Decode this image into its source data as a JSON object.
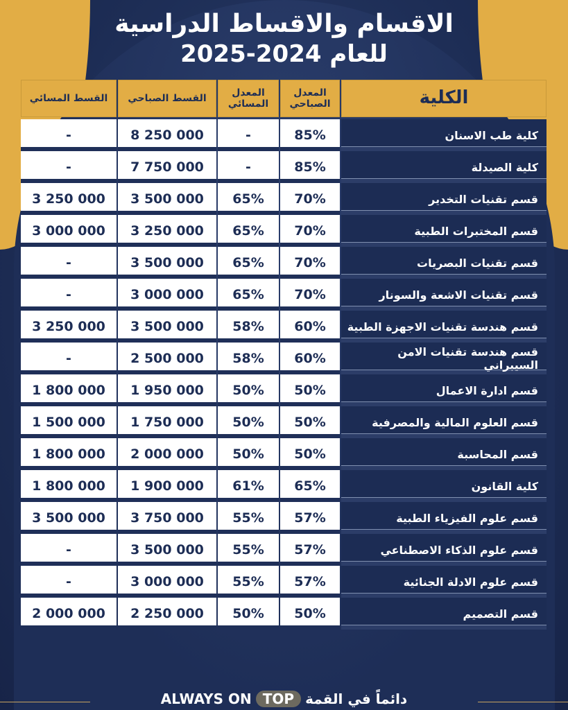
{
  "header": {
    "title_line1": "الاقسام والاقساط الدراسية",
    "title_line2": "للعام 2024-2025"
  },
  "colors": {
    "gold": "#e2ad45",
    "navy": "#1d2d55"
  },
  "table": {
    "columns": {
      "name": "الكلية",
      "morning_rate": "المعدل الصباحي",
      "evening_rate": "المعدل المسائي",
      "morning_fee": "القسط الصباحي",
      "evening_fee": "القسط المسائي"
    },
    "rows": [
      {
        "name": "كلية طب الاسنان",
        "morning_rate": "85%",
        "evening_rate": "-",
        "morning_fee": "8 250 000",
        "evening_fee": "-"
      },
      {
        "name": "كلية الصيدلة",
        "morning_rate": "85%",
        "evening_rate": "-",
        "morning_fee": "7 750 000",
        "evening_fee": "-"
      },
      {
        "name": "قسم تقنيات التخدير",
        "morning_rate": "70%",
        "evening_rate": "65%",
        "morning_fee": "3 500 000",
        "evening_fee": "3 250 000"
      },
      {
        "name": "قسم المختبرات الطبية",
        "morning_rate": "70%",
        "evening_rate": "65%",
        "morning_fee": "3 250 000",
        "evening_fee": "3 000 000"
      },
      {
        "name": "قسم تقنيات البصريات",
        "morning_rate": "70%",
        "evening_rate": "65%",
        "morning_fee": "3 500 000",
        "evening_fee": "-"
      },
      {
        "name": "قسم تقنيات الاشعة والسونار",
        "morning_rate": "70%",
        "evening_rate": "65%",
        "morning_fee": "3 000 000",
        "evening_fee": "-"
      },
      {
        "name": "قسم هندسة تقنيات الاجهزة الطبية",
        "morning_rate": "60%",
        "evening_rate": "58%",
        "morning_fee": "3 500 000",
        "evening_fee": "3 250 000"
      },
      {
        "name": "قسم هندسة تقنيات الامن السيبراني",
        "morning_rate": "60%",
        "evening_rate": "58%",
        "morning_fee": "2 500 000",
        "evening_fee": "-"
      },
      {
        "name": "قسم ادارة الاعمال",
        "morning_rate": "50%",
        "evening_rate": "50%",
        "morning_fee": "1 950 000",
        "evening_fee": "1 800 000"
      },
      {
        "name": "قسم العلوم المالية والمصرفية",
        "morning_rate": "50%",
        "evening_rate": "50%",
        "morning_fee": "1 750 000",
        "evening_fee": "1 500 000"
      },
      {
        "name": "قسم المحاسبة",
        "morning_rate": "50%",
        "evening_rate": "50%",
        "morning_fee": "2 000 000",
        "evening_fee": "1 800 000"
      },
      {
        "name": "كلية القانون",
        "morning_rate": "65%",
        "evening_rate": "61%",
        "morning_fee": "1 900 000",
        "evening_fee": "1 800 000"
      },
      {
        "name": "قسم علوم الفيزياء الطبية",
        "morning_rate": "57%",
        "evening_rate": "55%",
        "morning_fee": "3 750 000",
        "evening_fee": "3 500 000"
      },
      {
        "name": "قسم علوم الذكاء الاصطناعي",
        "morning_rate": "57%",
        "evening_rate": "55%",
        "morning_fee": "3 500 000",
        "evening_fee": "-"
      },
      {
        "name": "قسم علوم الادلة الجنائية",
        "morning_rate": "57%",
        "evening_rate": "55%",
        "morning_fee": "3 000 000",
        "evening_fee": "-"
      },
      {
        "name": "قسم التصميم",
        "morning_rate": "50%",
        "evening_rate": "50%",
        "morning_fee": "2 250 000",
        "evening_fee": "2 000 000"
      }
    ]
  },
  "footer": {
    "slogan_ar": "دائماً في القمة",
    "slogan_en_1": "ALWAYS ON",
    "slogan_en_2": "TOP"
  }
}
